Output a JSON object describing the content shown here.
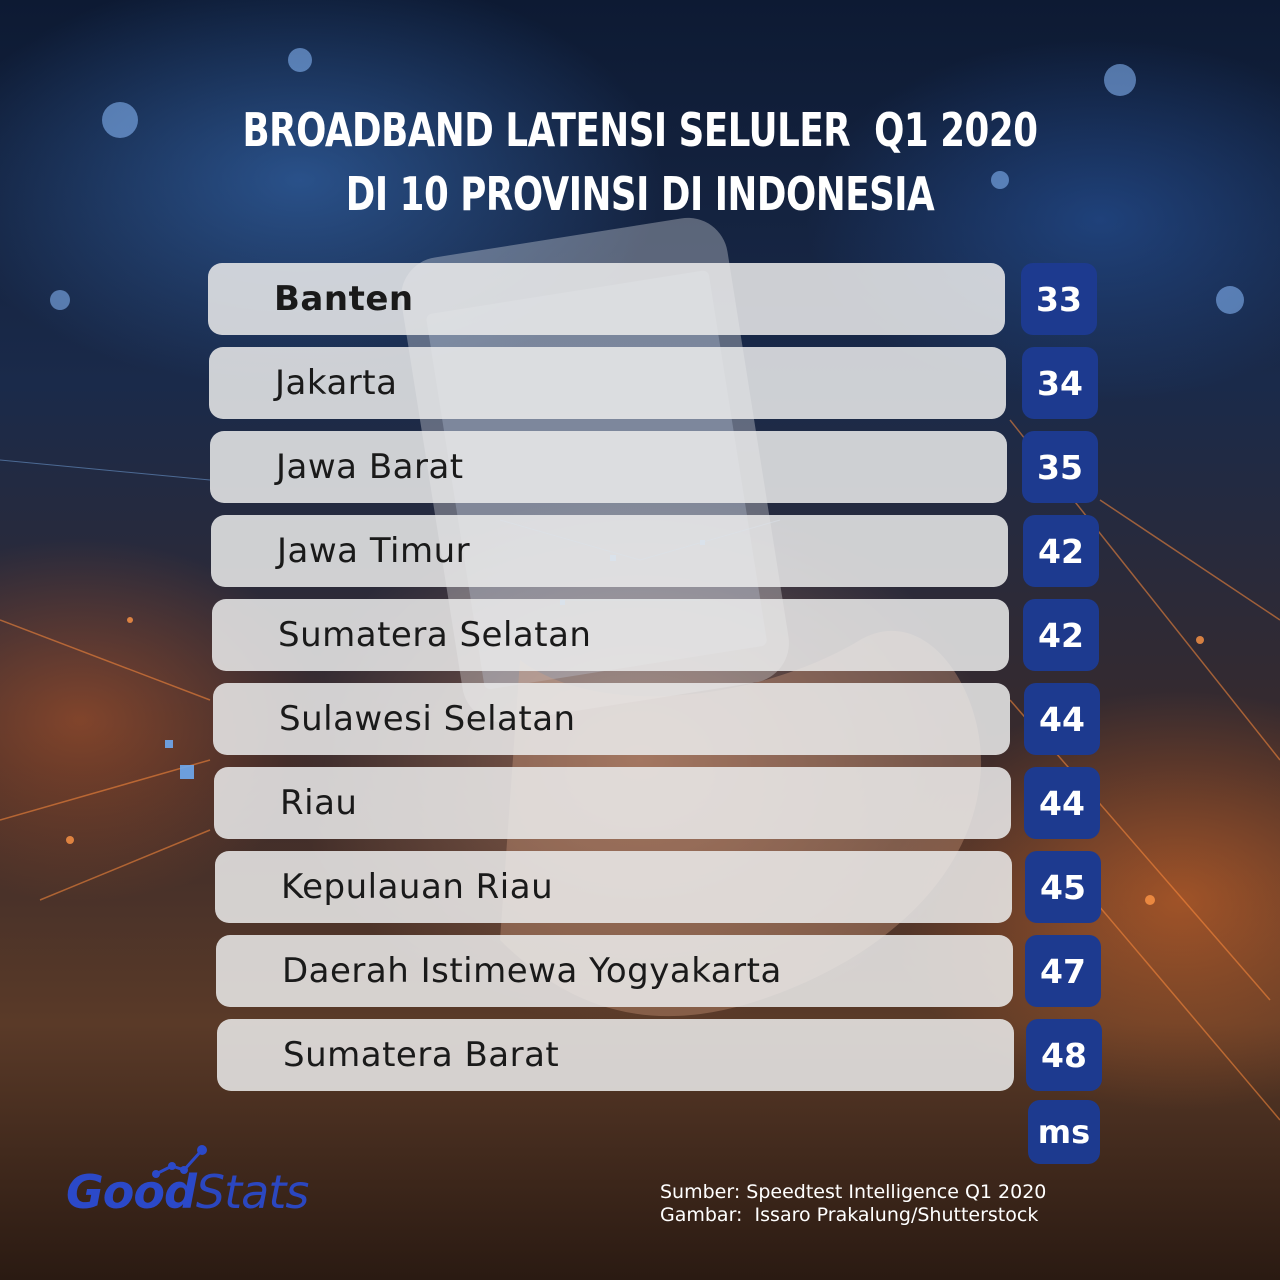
{
  "title": {
    "line1": "BROADBAND LATENSI SELULER  Q1 2020",
    "line2": "DI 10 PROVINSI DI INDONESIA"
  },
  "chart_data": {
    "type": "table",
    "title": "BROADBAND LATENSI SELULER  Q1 2020 DI 10 PROVINSI DI INDONESIA",
    "categories": [
      "Banten",
      "Jakarta",
      "Jawa Barat",
      "Jawa Timur",
      "Sumatera Selatan",
      "Sulawesi Selatan",
      "Riau",
      "Kepulauan Riau",
      "Daerah Istimewa Yogyakarta",
      "Sumatera Barat"
    ],
    "values": [
      33,
      34,
      35,
      42,
      42,
      44,
      44,
      45,
      47,
      48
    ],
    "unit": "ms"
  },
  "rows": [
    {
      "label": "Banten",
      "value": "33"
    },
    {
      "label": "Jakarta",
      "value": "34"
    },
    {
      "label": "Jawa Barat",
      "value": "35"
    },
    {
      "label": "Jawa Timur",
      "value": "42"
    },
    {
      "label": "Sumatera Selatan",
      "value": "42"
    },
    {
      "label": "Sulawesi Selatan",
      "value": "44"
    },
    {
      "label": "Riau",
      "value": "44"
    },
    {
      "label": "Kepulauan Riau",
      "value": "45"
    },
    {
      "label": "Daerah Istimewa Yogyakarta",
      "value": "47"
    },
    {
      "label": "Sumatera Barat",
      "value": "48"
    }
  ],
  "unit_label": "ms",
  "logo": {
    "part1": "Good",
    "part2": "Stats"
  },
  "source": {
    "line1": "Sumber: Speedtest Intelligence Q1 2020",
    "line2": "Gambar:  Issaro Prakalung/Shutterstock"
  },
  "colors": {
    "badge": "#1d3a8f",
    "row_background": "#ebebeb",
    "logo": "#2b49c9",
    "title": "#ffffff"
  }
}
